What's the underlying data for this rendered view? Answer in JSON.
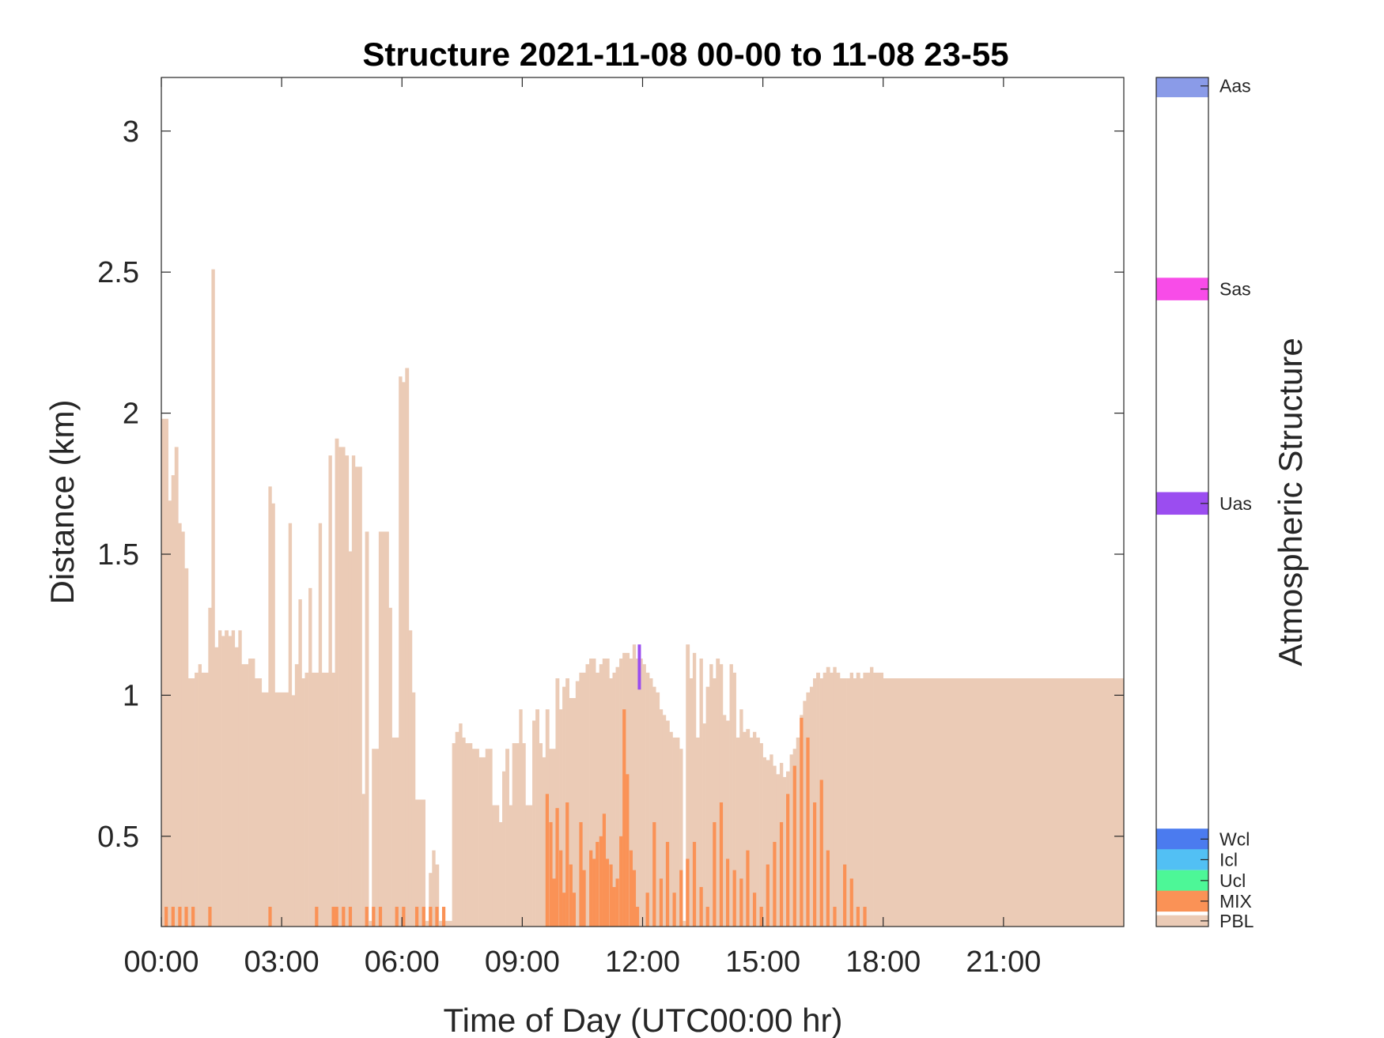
{
  "chart_data": {
    "type": "bar",
    "title": "Structure 2021-11-08 00-00 to 11-08 23-55",
    "xlabel": "Time of Day (UTC00:00 hr)",
    "ylabel": "Distance (km)",
    "xlim_hours": [
      0,
      24
    ],
    "ylim": [
      0.18,
      3.19
    ],
    "x_ticks": [
      "00:00",
      "03:00",
      "06:00",
      "09:00",
      "12:00",
      "15:00",
      "18:00",
      "21:00"
    ],
    "y_ticks": [
      "0.5",
      "1",
      "1.5",
      "2",
      "2.5",
      "3"
    ],
    "bin_minutes": 5,
    "colorbar": {
      "label": "Atmospheric Structure",
      "categories": [
        {
          "name": "Aas",
          "color": "#8a9be8"
        },
        {
          "name": "Sas",
          "color": "#f84ce8"
        },
        {
          "name": "Uas",
          "color": "#9b4df0"
        },
        {
          "name": "Wcl",
          "color": "#4b7bef"
        },
        {
          "name": "Icl",
          "color": "#52c0f4"
        },
        {
          "name": "Ucl",
          "color": "#4df797"
        },
        {
          "name": "MIX",
          "color": "#fa9256"
        },
        {
          "name": "PBL",
          "color": "#ebcbb6"
        }
      ]
    },
    "series": [
      {
        "name": "PBL",
        "color": "#ebcbb6",
        "points": [
          [
            0,
            1.98
          ],
          [
            0.17,
            1.69
          ],
          [
            0.25,
            1.78
          ],
          [
            0.33,
            1.88
          ],
          [
            0.42,
            1.61
          ],
          [
            0.5,
            1.58
          ],
          [
            0.58,
            1.45
          ],
          [
            0.67,
            1.06
          ],
          [
            0.83,
            1.08
          ],
          [
            0.92,
            1.11
          ],
          [
            1.0,
            1.08
          ],
          [
            1.17,
            1.31
          ],
          [
            1.25,
            2.51
          ],
          [
            1.33,
            1.17
          ],
          [
            1.42,
            1.23
          ],
          [
            1.5,
            1.21
          ],
          [
            1.58,
            1.23
          ],
          [
            1.67,
            1.21
          ],
          [
            1.75,
            1.23
          ],
          [
            1.83,
            1.17
          ],
          [
            1.92,
            1.23
          ],
          [
            2.0,
            1.11
          ],
          [
            2.17,
            1.13
          ],
          [
            2.33,
            1.06
          ],
          [
            2.5,
            1.01
          ],
          [
            2.67,
            1.74
          ],
          [
            2.75,
            1.68
          ],
          [
            2.83,
            1.01
          ],
          [
            3.17,
            1.61
          ],
          [
            3.25,
            1.0
          ],
          [
            3.33,
            1.11
          ],
          [
            3.42,
            1.34
          ],
          [
            3.5,
            1.06
          ],
          [
            3.58,
            1.08
          ],
          [
            3.67,
            1.38
          ],
          [
            3.75,
            1.08
          ],
          [
            3.92,
            1.61
          ],
          [
            4.0,
            1.08
          ],
          [
            4.17,
            1.85
          ],
          [
            4.25,
            1.08
          ],
          [
            4.33,
            1.91
          ],
          [
            4.42,
            1.88
          ],
          [
            4.58,
            1.85
          ],
          [
            4.67,
            1.51
          ],
          [
            4.75,
            1.85
          ],
          [
            4.83,
            1.81
          ],
          [
            5.0,
            0.65
          ],
          [
            5.08,
            1.58
          ],
          [
            5.17,
            0.2
          ],
          [
            5.25,
            0.81
          ],
          [
            5.42,
            1.58
          ],
          [
            5.67,
            1.31
          ],
          [
            5.75,
            0.85
          ],
          [
            5.92,
            2.13
          ],
          [
            6.0,
            2.11
          ],
          [
            6.08,
            2.16
          ],
          [
            6.17,
            1.23
          ],
          [
            6.25,
            1.01
          ],
          [
            6.33,
            0.63
          ],
          [
            6.58,
            0.2
          ],
          [
            6.67,
            0.37
          ],
          [
            6.75,
            0.45
          ],
          [
            6.83,
            0.4
          ],
          [
            6.92,
            0.2
          ],
          [
            7.08,
            0.2
          ],
          [
            7.25,
            0.83
          ],
          [
            7.33,
            0.87
          ],
          [
            7.42,
            0.9
          ],
          [
            7.5,
            0.85
          ],
          [
            7.58,
            0.83
          ],
          [
            7.75,
            0.81
          ],
          [
            7.92,
            0.78
          ],
          [
            8.08,
            0.81
          ],
          [
            8.25,
            0.61
          ],
          [
            8.42,
            0.55
          ],
          [
            8.5,
            0.73
          ],
          [
            8.58,
            0.81
          ],
          [
            8.67,
            0.61
          ],
          [
            8.75,
            0.83
          ],
          [
            8.92,
            0.95
          ],
          [
            9.0,
            0.83
          ],
          [
            9.08,
            0.61
          ],
          [
            9.25,
            0.91
          ],
          [
            9.33,
            0.95
          ],
          [
            9.42,
            0.83
          ],
          [
            9.5,
            0.78
          ],
          [
            9.58,
            0.95
          ],
          [
            9.67,
            0.81
          ],
          [
            9.83,
            1.06
          ],
          [
            9.92,
            0.95
          ],
          [
            10.0,
            1.03
          ],
          [
            10.08,
            1.06
          ],
          [
            10.17,
            0.99
          ],
          [
            10.33,
            1.05
          ],
          [
            10.42,
            1.08
          ],
          [
            10.58,
            1.11
          ],
          [
            10.67,
            1.13
          ],
          [
            10.83,
            1.08
          ],
          [
            10.92,
            1.11
          ],
          [
            11.0,
            1.13
          ],
          [
            11.17,
            1.06
          ],
          [
            11.25,
            1.08
          ],
          [
            11.33,
            1.1
          ],
          [
            11.42,
            1.13
          ],
          [
            11.5,
            1.15
          ],
          [
            11.67,
            1.13
          ],
          [
            11.75,
            1.18
          ],
          [
            11.83,
            1.13
          ],
          [
            12.0,
            1.11
          ],
          [
            12.08,
            1.08
          ],
          [
            12.17,
            1.06
          ],
          [
            12.25,
            1.03
          ],
          [
            12.33,
            1.01
          ],
          [
            12.42,
            0.95
          ],
          [
            12.5,
            0.93
          ],
          [
            12.58,
            0.91
          ],
          [
            12.67,
            0.87
          ],
          [
            12.75,
            0.85
          ],
          [
            12.92,
            0.81
          ],
          [
            13.0,
            0.2
          ],
          [
            13.08,
            1.18
          ],
          [
            13.17,
            1.06
          ],
          [
            13.25,
            1.15
          ],
          [
            13.33,
            0.85
          ],
          [
            13.42,
            1.13
          ],
          [
            13.5,
            0.9
          ],
          [
            13.58,
            1.03
          ],
          [
            13.67,
            1.11
          ],
          [
            13.75,
            1.06
          ],
          [
            13.83,
            1.13
          ],
          [
            13.92,
            1.11
          ],
          [
            14.0,
            0.93
          ],
          [
            14.08,
            0.91
          ],
          [
            14.17,
            1.11
          ],
          [
            14.25,
            1.08
          ],
          [
            14.33,
            0.85
          ],
          [
            14.42,
            0.95
          ],
          [
            14.5,
            0.87
          ],
          [
            14.58,
            0.88
          ],
          [
            14.67,
            0.85
          ],
          [
            14.75,
            0.87
          ],
          [
            14.83,
            0.85
          ],
          [
            14.92,
            0.83
          ],
          [
            15.0,
            0.78
          ],
          [
            15.08,
            0.77
          ],
          [
            15.17,
            0.79
          ],
          [
            15.25,
            0.75
          ],
          [
            15.33,
            0.72
          ],
          [
            15.42,
            0.76
          ],
          [
            15.5,
            0.71
          ],
          [
            15.58,
            0.73
          ],
          [
            15.67,
            0.79
          ],
          [
            15.75,
            0.81
          ],
          [
            15.83,
            0.85
          ],
          [
            15.92,
            0.93
          ],
          [
            16.0,
            0.98
          ],
          [
            16.08,
            1.01
          ],
          [
            16.17,
            1.03
          ],
          [
            16.25,
            1.06
          ],
          [
            16.33,
            1.08
          ],
          [
            16.42,
            1.06
          ],
          [
            16.5,
            1.08
          ],
          [
            16.58,
            1.1
          ],
          [
            16.67,
            1.08
          ],
          [
            16.75,
            1.1
          ],
          [
            16.83,
            1.08
          ],
          [
            16.92,
            1.06
          ],
          [
            17.08,
            1.06
          ],
          [
            17.17,
            1.08
          ],
          [
            17.25,
            1.06
          ],
          [
            17.33,
            1.08
          ],
          [
            17.42,
            1.06
          ],
          [
            17.5,
            1.08
          ],
          [
            17.67,
            1.1
          ],
          [
            17.75,
            1.08
          ],
          [
            18.0,
            1.06
          ]
        ]
      },
      {
        "name": "MIX",
        "color": "#fa9256",
        "points": [
          [
            0.08,
            0.25
          ],
          [
            0.25,
            0.25
          ],
          [
            0.42,
            0.25
          ],
          [
            0.58,
            0.25
          ],
          [
            0.75,
            0.25
          ],
          [
            1.17,
            0.25
          ],
          [
            2.67,
            0.25
          ],
          [
            3.83,
            0.25
          ],
          [
            4.25,
            0.25
          ],
          [
            4.33,
            0.25
          ],
          [
            4.5,
            0.25
          ],
          [
            4.67,
            0.25
          ],
          [
            5.08,
            0.25
          ],
          [
            5.25,
            0.25
          ],
          [
            5.42,
            0.25
          ],
          [
            5.83,
            0.25
          ],
          [
            6.0,
            0.25
          ],
          [
            6.33,
            0.25
          ],
          [
            6.5,
            0.25
          ],
          [
            6.67,
            0.25
          ],
          [
            6.83,
            0.25
          ],
          [
            7.0,
            0.25
          ],
          [
            9.58,
            0.65
          ],
          [
            9.67,
            0.55
          ],
          [
            9.75,
            0.35
          ],
          [
            9.83,
            0.6
          ],
          [
            9.92,
            0.45
          ],
          [
            10.0,
            0.3
          ],
          [
            10.08,
            0.62
          ],
          [
            10.17,
            0.4
          ],
          [
            10.25,
            0.3
          ],
          [
            10.42,
            0.55
          ],
          [
            10.5,
            0.38
          ],
          [
            10.67,
            0.45
          ],
          [
            10.75,
            0.42
          ],
          [
            10.83,
            0.48
          ],
          [
            10.92,
            0.5
          ],
          [
            11.0,
            0.58
          ],
          [
            11.08,
            0.42
          ],
          [
            11.17,
            0.4
          ],
          [
            11.25,
            0.32
          ],
          [
            11.33,
            0.35
          ],
          [
            11.42,
            0.5
          ],
          [
            11.5,
            0.95
          ],
          [
            11.58,
            0.72
          ],
          [
            11.67,
            0.45
          ],
          [
            11.75,
            0.38
          ],
          [
            11.83,
            0.25
          ],
          [
            12.08,
            0.3
          ],
          [
            12.25,
            0.55
          ],
          [
            12.42,
            0.35
          ],
          [
            12.58,
            0.48
          ],
          [
            12.75,
            0.3
          ],
          [
            12.92,
            0.38
          ],
          [
            13.08,
            0.42
          ],
          [
            13.25,
            0.48
          ],
          [
            13.42,
            0.32
          ],
          [
            13.58,
            0.25
          ],
          [
            13.75,
            0.55
          ],
          [
            13.92,
            0.62
          ],
          [
            14.08,
            0.42
          ],
          [
            14.25,
            0.38
          ],
          [
            14.42,
            0.35
          ],
          [
            14.58,
            0.45
          ],
          [
            14.75,
            0.3
          ],
          [
            14.92,
            0.25
          ],
          [
            15.08,
            0.4
          ],
          [
            15.25,
            0.48
          ],
          [
            15.42,
            0.55
          ],
          [
            15.58,
            0.65
          ],
          [
            15.75,
            0.75
          ],
          [
            15.92,
            0.92
          ],
          [
            16.08,
            0.85
          ],
          [
            16.25,
            0.62
          ],
          [
            16.42,
            0.7
          ],
          [
            16.58,
            0.45
          ],
          [
            16.75,
            0.25
          ],
          [
            17.0,
            0.4
          ],
          [
            17.17,
            0.35
          ],
          [
            17.33,
            0.25
          ],
          [
            17.5,
            0.25
          ]
        ]
      },
      {
        "name": "Uas",
        "color": "#9b4df0",
        "points": [
          [
            11.92,
            1.18
          ]
        ]
      }
    ]
  }
}
